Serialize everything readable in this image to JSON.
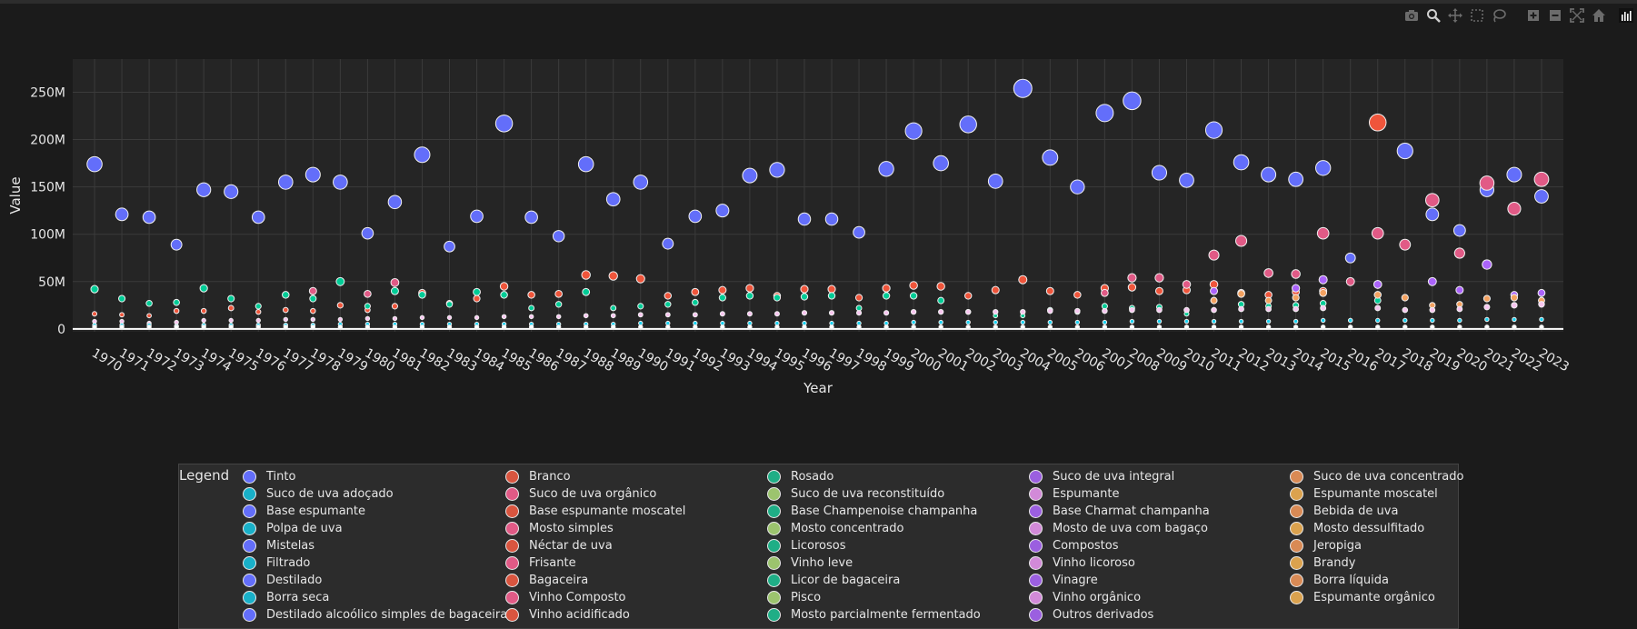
{
  "modebar": {
    "buttons": [
      "camera-icon",
      "zoom-icon",
      "pan-icon",
      "box-select-icon",
      "lasso-icon",
      "zoom-in-icon",
      "zoom-out-icon",
      "autoscale-icon",
      "reset-axes-icon",
      "plotly-logo-icon"
    ]
  },
  "chart_data": {
    "type": "scatter",
    "xlabel": "Year",
    "ylabel": "Value",
    "x": [
      1970,
      1971,
      1972,
      1973,
      1974,
      1975,
      1976,
      1977,
      1978,
      1979,
      1980,
      1981,
      1982,
      1983,
      1984,
      1985,
      1986,
      1987,
      1988,
      1989,
      1990,
      1991,
      1992,
      1993,
      1994,
      1995,
      1996,
      1997,
      1998,
      1999,
      2000,
      2001,
      2002,
      2003,
      2004,
      2005,
      2006,
      2007,
      2008,
      2009,
      2010,
      2011,
      2012,
      2013,
      2014,
      2015,
      2016,
      2017,
      2018,
      2019,
      2020,
      2021,
      2022,
      2023
    ],
    "ylim": [
      -3000000,
      285000000
    ],
    "yticks": [
      0,
      50000000,
      100000000,
      150000000,
      200000000,
      250000000
    ],
    "ytick_labels": [
      "0",
      "50M",
      "100M",
      "150M",
      "200M",
      "250M"
    ],
    "grid": true,
    "marker_size_by_value": true,
    "legend_title": "Legend",
    "legend_position": "bottom",
    "series": [
      {
        "name": "Tinto",
        "color": "#636efa",
        "values": [
          174,
          121,
          118,
          89,
          147,
          145,
          118,
          155,
          163,
          155,
          101,
          134,
          184,
          87,
          119,
          217,
          118,
          98,
          174,
          137,
          155,
          90,
          119,
          125,
          162,
          168,
          116,
          116,
          102,
          169,
          209,
          175,
          216,
          156,
          254,
          181,
          150,
          228,
          241,
          165,
          157,
          210,
          176,
          163,
          158,
          170,
          75,
          47,
          188,
          121,
          104,
          147,
          163,
          140
        ]
      },
      {
        "name": "Branco",
        "color": "#ef553b",
        "values": [
          16,
          15,
          14,
          19,
          19,
          22,
          18,
          20,
          19,
          25,
          20,
          24,
          38,
          27,
          32,
          45,
          36,
          37,
          57,
          56,
          53,
          35,
          39,
          41,
          43,
          35,
          42,
          42,
          33,
          43,
          46,
          45,
          35,
          41,
          52,
          40,
          36,
          43,
          44,
          40,
          41,
          47,
          38,
          36,
          39,
          40,
          null,
          218,
          null,
          null,
          null,
          null,
          null,
          null
        ]
      },
      {
        "name": "Rosado",
        "color": "#00cc96",
        "values": [
          42,
          32,
          27,
          28,
          43,
          32,
          24,
          36,
          32,
          50,
          24,
          40,
          36,
          26,
          39,
          36,
          22,
          26,
          39,
          22,
          24,
          26,
          28,
          33,
          35,
          33,
          34,
          35,
          22,
          35,
          35,
          30,
          18,
          14,
          14,
          20,
          18,
          24,
          22,
          23,
          16,
          30,
          26,
          24,
          25,
          27,
          null,
          30,
          null,
          null,
          null,
          null,
          null,
          null
        ]
      },
      {
        "name": "Suco de uva orgânico",
        "color": "#e15a86",
        "values": [
          null,
          null,
          null,
          null,
          null,
          null,
          null,
          null,
          40,
          null,
          37,
          49,
          null,
          null,
          null,
          null,
          null,
          null,
          null,
          null,
          null,
          null,
          null,
          null,
          null,
          null,
          null,
          null,
          null,
          null,
          null,
          null,
          null,
          null,
          null,
          null,
          null,
          38,
          54,
          54,
          47,
          78,
          93,
          59,
          58,
          101,
          50,
          101,
          89,
          136,
          80,
          154,
          127,
          158
        ]
      },
      {
        "name": "Suco de uva integral",
        "color": "#ab63fa",
        "values": [
          null,
          null,
          null,
          null,
          null,
          null,
          null,
          null,
          null,
          null,
          null,
          null,
          null,
          null,
          null,
          null,
          null,
          null,
          null,
          null,
          null,
          null,
          null,
          null,
          null,
          null,
          null,
          null,
          null,
          null,
          null,
          null,
          null,
          null,
          null,
          null,
          null,
          null,
          null,
          null,
          null,
          40,
          null,
          null,
          43,
          52,
          null,
          47,
          null,
          50,
          41,
          68,
          36,
          38
        ]
      },
      {
        "name": "Suco de uva concentrado",
        "color": "#f4a261",
        "values": [
          null,
          null,
          null,
          null,
          null,
          null,
          null,
          null,
          null,
          null,
          null,
          null,
          null,
          null,
          null,
          null,
          null,
          null,
          null,
          null,
          null,
          null,
          null,
          null,
          null,
          null,
          null,
          null,
          null,
          null,
          null,
          null,
          null,
          null,
          null,
          null,
          null,
          null,
          null,
          null,
          null,
          30,
          37,
          30,
          33,
          38,
          null,
          36,
          33,
          25,
          26,
          32,
          33,
          30
        ]
      },
      {
        "name": "Espumante",
        "color": "#f8c6f0",
        "values": [
          8,
          8,
          6,
          7,
          9,
          9,
          9,
          10,
          10,
          10,
          11,
          11,
          12,
          12,
          12,
          13,
          13,
          13,
          14,
          14,
          15,
          15,
          15,
          16,
          16,
          16,
          17,
          17,
          17,
          17,
          18,
          18,
          18,
          18,
          18,
          19,
          19,
          19,
          20,
          20,
          20,
          20,
          21,
          21,
          21,
          22,
          9,
          22,
          20,
          20,
          21,
          23,
          25,
          26
        ]
      },
      {
        "name": "Suco de uva adoçado",
        "color": "#19d3f3",
        "values": [
          4,
          4,
          4,
          3,
          4,
          4,
          4,
          4,
          4,
          5,
          5,
          5,
          5,
          5,
          5,
          5,
          5,
          5,
          5,
          5,
          6,
          6,
          6,
          6,
          6,
          6,
          6,
          6,
          6,
          6,
          7,
          7,
          7,
          7,
          7,
          7,
          7,
          7,
          8,
          8,
          8,
          8,
          8,
          8,
          8,
          9,
          9,
          9,
          9,
          9,
          9,
          10,
          10,
          10
        ]
      },
      {
        "name": "Base espumante",
        "color": "#ffffff",
        "values": [
          2,
          2,
          2,
          2,
          2,
          2,
          2,
          2,
          2,
          2,
          2,
          2,
          2,
          2,
          2,
          2,
          2,
          2,
          2,
          2,
          2,
          2,
          2,
          2,
          2,
          2,
          2,
          2,
          2,
          2,
          2,
          2,
          2,
          2,
          2,
          2,
          2,
          2,
          2,
          2,
          2,
          2,
          2,
          2,
          2,
          2,
          2,
          2,
          2,
          2,
          2,
          2,
          2,
          2
        ]
      }
    ]
  },
  "legend": {
    "title": "Legend",
    "columns": [
      {
        "items": [
          {
            "label": "Tinto",
            "color": "#636efa"
          },
          {
            "label": "Suco de uva adoçado",
            "color": "#19b0c8"
          },
          {
            "label": "Base espumante",
            "color": "#636efa"
          },
          {
            "label": "Polpa de uva",
            "color": "#19b0c8"
          },
          {
            "label": "Mistelas",
            "color": "#636efa"
          },
          {
            "label": "Filtrado",
            "color": "#19b0c8"
          },
          {
            "label": "Destilado",
            "color": "#636efa"
          },
          {
            "label": "Borra seca",
            "color": "#19b0c8"
          },
          {
            "label": "Destilado alcoólico simples de bagaceira",
            "color": "#636efa"
          }
        ]
      },
      {
        "items": [
          {
            "label": "Branco",
            "color": "#d9553f"
          },
          {
            "label": "Suco de uva orgânico",
            "color": "#e15a86"
          },
          {
            "label": "Base espumante moscatel",
            "color": "#d9553f"
          },
          {
            "label": "Mosto simples",
            "color": "#e15a86"
          },
          {
            "label": "Néctar de uva",
            "color": "#d9553f"
          },
          {
            "label": "Frisante",
            "color": "#e15a86"
          },
          {
            "label": "Bagaceira",
            "color": "#d9553f"
          },
          {
            "label": "Vinho Composto",
            "color": "#e15a86"
          },
          {
            "label": "Vinho acidificado",
            "color": "#d9553f"
          }
        ]
      },
      {
        "items": [
          {
            "label": "Rosado",
            "color": "#1fae86"
          },
          {
            "label": "Suco de uva reconstituído",
            "color": "#9cc46e"
          },
          {
            "label": "Base Champenoise champanha",
            "color": "#1fae86"
          },
          {
            "label": "Mosto concentrado",
            "color": "#9cc46e"
          },
          {
            "label": "Licorosos",
            "color": "#1fae86"
          },
          {
            "label": "Vinho leve",
            "color": "#9cc46e"
          },
          {
            "label": "Licor de bagaceira",
            "color": "#1fae86"
          },
          {
            "label": "Pisco",
            "color": "#9cc46e"
          },
          {
            "label": "Mosto parcialmente fermentado",
            "color": "#1fae86"
          }
        ]
      },
      {
        "items": [
          {
            "label": "Suco de uva integral",
            "color": "#9b5fe0"
          },
          {
            "label": "Espumante",
            "color": "#d28ad8"
          },
          {
            "label": "Base Charmat champanha",
            "color": "#9b5fe0"
          },
          {
            "label": "Mosto de uva com bagaço",
            "color": "#d28ad8"
          },
          {
            "label": "Compostos",
            "color": "#9b5fe0"
          },
          {
            "label": "Vinho licoroso",
            "color": "#d28ad8"
          },
          {
            "label": "Vinagre",
            "color": "#9b5fe0"
          },
          {
            "label": "Vinho orgânico",
            "color": "#d28ad8"
          },
          {
            "label": "Outros derivados",
            "color": "#9b5fe0"
          }
        ]
      },
      {
        "items": [
          {
            "label": "Suco de uva concentrado",
            "color": "#d98a55"
          },
          {
            "label": "Espumante moscatel",
            "color": "#dba24e"
          },
          {
            "label": "Bebida de uva",
            "color": "#d98a55"
          },
          {
            "label": "Mosto dessulfitado",
            "color": "#dba24e"
          },
          {
            "label": "Jeropiga",
            "color": "#d98a55"
          },
          {
            "label": "Brandy",
            "color": "#dba24e"
          },
          {
            "label": "Borra líquida",
            "color": "#d98a55"
          },
          {
            "label": "Espumante orgânico",
            "color": "#dba24e"
          }
        ]
      }
    ]
  }
}
